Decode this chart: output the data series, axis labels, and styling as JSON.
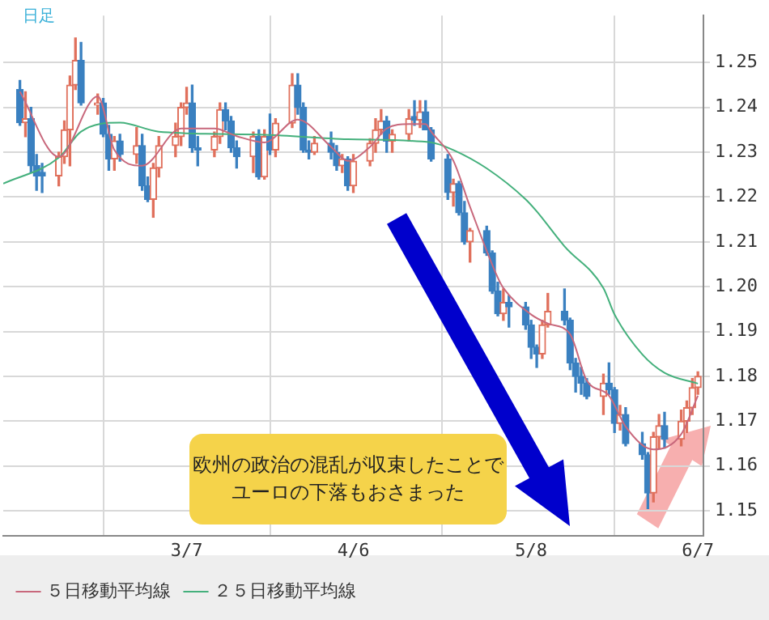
{
  "chart_data": {
    "type": "candlestick",
    "annotations": [
      "日足",
      "欧州の政治の混乱が収束したことでユーロの下落もおさまった"
    ],
    "x": [
      "--02-05",
      "--02-06",
      "--02-07",
      "--02-08",
      "--02-09",
      "--02-12",
      "--02-13",
      "--02-14",
      "--02-15",
      "--02-16",
      "--02-19",
      "--02-20",
      "--02-21",
      "--02-22",
      "--02-23",
      "--02-26",
      "--02-27",
      "--02-28",
      "--03-01",
      "--03-02",
      "--03-05",
      "--03-06",
      "--03-07",
      "--03-08",
      "--03-09",
      "--03-12",
      "--03-13",
      "--03-14",
      "--03-15",
      "--03-16",
      "--03-19",
      "--03-20",
      "--03-21",
      "--03-22",
      "--03-23",
      "--03-26",
      "--03-27",
      "--03-28",
      "--03-29",
      "--03-30",
      "--04-02",
      "--04-03",
      "--04-04",
      "--04-05",
      "--04-06",
      "--04-09",
      "--04-10",
      "--04-11",
      "--04-12",
      "--04-13",
      "--04-16",
      "--04-17",
      "--04-18",
      "--04-19",
      "--04-20",
      "--04-23",
      "--04-24",
      "--04-25",
      "--04-26",
      "--04-27",
      "--04-30",
      "--05-01",
      "--05-02",
      "--05-03",
      "--05-04",
      "--05-07",
      "--05-08",
      "--05-09",
      "--05-10",
      "--05-11",
      "--05-14",
      "--05-15",
      "--05-16",
      "--05-17",
      "--05-18",
      "--05-21",
      "--05-22",
      "--05-23",
      "--05-24",
      "--05-25",
      "--05-28",
      "--05-29",
      "--05-30",
      "--05-31",
      "--06-01",
      "--06-04",
      "--06-05",
      "--06-06",
      "--06-07"
    ],
    "ohlc": [
      [
        1.244,
        1.246,
        1.236,
        1.2366
      ],
      [
        1.2366,
        1.2435,
        1.2335,
        1.2375
      ],
      [
        1.2375,
        1.24,
        1.2255,
        1.227
      ],
      [
        1.227,
        1.2295,
        1.2215,
        1.2247
      ],
      [
        1.2255,
        1.2275,
        1.221,
        1.2247
      ],
      [
        1.2247,
        1.23,
        1.2225,
        1.229
      ],
      [
        1.229,
        1.237,
        1.2275,
        1.235
      ],
      [
        1.235,
        1.247,
        1.227,
        1.245
      ],
      [
        1.245,
        1.2555,
        1.244,
        1.2505
      ],
      [
        1.2505,
        1.2545,
        1.2405,
        1.241
      ],
      [
        1.2405,
        1.243,
        1.2385,
        1.241
      ],
      [
        1.241,
        1.242,
        1.2335,
        1.234
      ],
      [
        1.234,
        1.236,
        1.226,
        1.2285
      ],
      [
        1.2285,
        1.2335,
        1.226,
        1.2325
      ],
      [
        1.2325,
        1.234,
        1.228,
        1.2295
      ],
      [
        1.2295,
        1.2355,
        1.2275,
        1.2315
      ],
      [
        1.2315,
        1.234,
        1.2215,
        1.2225
      ],
      [
        1.2225,
        1.2245,
        1.219,
        1.2195
      ],
      [
        1.2195,
        1.2275,
        1.2155,
        1.2265
      ],
      [
        1.2265,
        1.2335,
        1.2245,
        1.2315
      ],
      [
        1.2315,
        1.2365,
        1.229,
        1.2335
      ],
      [
        1.2335,
        1.241,
        1.2315,
        1.24
      ],
      [
        1.24,
        1.2445,
        1.2385,
        1.241
      ],
      [
        1.241,
        1.245,
        1.23,
        1.231
      ],
      [
        1.231,
        1.2335,
        1.227,
        1.2305
      ],
      [
        1.2305,
        1.2345,
        1.229,
        1.2335
      ],
      [
        1.2335,
        1.241,
        1.232,
        1.2395
      ],
      [
        1.2395,
        1.241,
        1.235,
        1.237
      ],
      [
        1.237,
        1.238,
        1.23,
        1.231
      ],
      [
        1.231,
        1.2325,
        1.2265,
        1.229
      ],
      [
        1.229,
        1.2345,
        1.2255,
        1.2335
      ],
      [
        1.2335,
        1.235,
        1.224,
        1.2245
      ],
      [
        1.2245,
        1.235,
        1.224,
        1.2335
      ],
      [
        1.2335,
        1.2385,
        1.2295,
        1.2305
      ],
      [
        1.2305,
        1.2375,
        1.229,
        1.2365
      ],
      [
        1.2365,
        1.2475,
        1.2355,
        1.245
      ],
      [
        1.245,
        1.2475,
        1.2385,
        1.24
      ],
      [
        1.24,
        1.241,
        1.23,
        1.2305
      ],
      [
        1.2305,
        1.2325,
        1.2285,
        1.23
      ],
      [
        1.23,
        1.2335,
        1.2295,
        1.232
      ],
      [
        1.232,
        1.2345,
        1.2285,
        1.23
      ],
      [
        1.23,
        1.2315,
        1.226,
        1.227
      ],
      [
        1.227,
        1.2295,
        1.2255,
        1.2285
      ],
      [
        1.2285,
        1.229,
        1.2215,
        1.2225
      ],
      [
        1.2225,
        1.2295,
        1.221,
        1.228
      ],
      [
        1.228,
        1.233,
        1.227,
        1.232
      ],
      [
        1.232,
        1.2375,
        1.23,
        1.235
      ],
      [
        1.235,
        1.2395,
        1.234,
        1.237
      ],
      [
        1.237,
        1.238,
        1.23,
        1.2325
      ],
      [
        1.2325,
        1.235,
        1.23,
        1.234
      ],
      [
        1.234,
        1.2395,
        1.2325,
        1.2375
      ],
      [
        1.238,
        1.2415,
        1.236,
        1.2372
      ],
      [
        1.2372,
        1.2415,
        1.2355,
        1.239
      ],
      [
        1.239,
        1.2415,
        1.235,
        1.235
      ],
      [
        1.235,
        1.2355,
        1.228,
        1.2285
      ],
      [
        1.2285,
        1.2295,
        1.2195,
        1.221
      ],
      [
        1.221,
        1.224,
        1.218,
        1.223
      ],
      [
        1.223,
        1.2235,
        1.216,
        1.2165
      ],
      [
        1.2165,
        1.219,
        1.2095,
        1.21
      ],
      [
        1.21,
        1.213,
        1.2055,
        1.2125
      ],
      [
        1.2125,
        1.2135,
        1.207,
        1.2075
      ],
      [
        1.2075,
        1.208,
        1.1985,
        1.199
      ],
      [
        1.199,
        1.201,
        1.1935,
        1.194
      ],
      [
        1.194,
        1.1995,
        1.1925,
        1.1965
      ],
      [
        1.1965,
        1.198,
        1.191,
        1.1955
      ],
      [
        1.1955,
        1.1965,
        1.1905,
        1.1915
      ],
      [
        1.1915,
        1.1925,
        1.184,
        1.1865
      ],
      [
        1.1865,
        1.187,
        1.182,
        1.185
      ],
      [
        1.185,
        1.1925,
        1.184,
        1.1915
      ],
      [
        1.1915,
        1.1985,
        1.191,
        1.1945
      ],
      [
        1.1945,
        1.1995,
        1.1915,
        1.1925
      ],
      [
        1.1925,
        1.193,
        1.1815,
        1.183
      ],
      [
        1.183,
        1.184,
        1.1765,
        1.18
      ],
      [
        1.18,
        1.182,
        1.176,
        1.1785
      ],
      [
        1.1785,
        1.1795,
        1.175,
        1.1755
      ],
      [
        1.1755,
        1.1805,
        1.1715,
        1.1785
      ],
      [
        1.1785,
        1.183,
        1.176,
        1.177
      ],
      [
        1.177,
        1.1775,
        1.1675,
        1.1695
      ],
      [
        1.1695,
        1.1735,
        1.168,
        1.1715
      ],
      [
        1.1715,
        1.173,
        1.1645,
        1.165
      ],
      [
        1.165,
        1.1675,
        1.1615,
        1.1625
      ],
      [
        1.1625,
        1.163,
        1.1505,
        1.154
      ],
      [
        1.154,
        1.1675,
        1.152,
        1.1665
      ],
      [
        1.1665,
        1.1715,
        1.164,
        1.169
      ],
      [
        1.169,
        1.172,
        1.164,
        1.166
      ],
      [
        1.166,
        1.1725,
        1.1645,
        1.17
      ],
      [
        1.17,
        1.1745,
        1.1675,
        1.173
      ],
      [
        1.173,
        1.1795,
        1.1715,
        1.1775
      ],
      [
        1.1775,
        1.181,
        1.176,
        1.18
      ]
    ],
    "series": [
      {
        "name": "５日移動平均線",
        "type": "line",
        "color": "#c8687c",
        "x": [
          "--02-05",
          "--02-12",
          "--02-19",
          "--02-22",
          "--02-27",
          "--03-06",
          "--03-12",
          "--03-16",
          "--03-21",
          "--03-27",
          "--04-02",
          "--04-05",
          "--04-09",
          "--04-12",
          "--04-16",
          "--04-19",
          "--04-20",
          "--04-24",
          "--04-27",
          "--05-02",
          "--05-03",
          "--05-08",
          "--05-11",
          "--05-15",
          "--05-18",
          "--05-22",
          "--05-25",
          "--05-30",
          "--06-04",
          "--06-07"
        ],
        "values": [
          1.2435,
          1.229,
          1.2425,
          1.2305,
          1.227,
          1.2353,
          1.2353,
          1.2336,
          1.2322,
          1.2373,
          1.2312,
          1.2281,
          1.2312,
          1.2353,
          1.2363,
          1.2363,
          1.2346,
          1.2281,
          1.2178,
          1.202,
          1.1997,
          1.1938,
          1.1918,
          1.1894,
          1.1791,
          1.1757,
          1.1688,
          1.1637,
          1.1671,
          1.1757
        ]
      },
      {
        "name": "２５日移動平均線",
        "type": "line",
        "color": "#44b07c",
        "x": [
          "--02-02",
          "--02-12",
          "--02-16",
          "--02-23",
          "--03-02",
          "--03-21",
          "--04-05",
          "--04-20",
          "--04-24",
          "--04-30",
          "--05-07",
          "--05-09",
          "--05-14",
          "--05-21",
          "--05-23",
          "--05-28",
          "--06-01",
          "--06-07"
        ],
        "values": [
          1.223,
          1.2288,
          1.2346,
          1.2366,
          1.2346,
          1.2339,
          1.2329,
          1.2322,
          1.2305,
          1.2264,
          1.2195,
          1.2168,
          1.209,
          1.1997,
          1.1938,
          1.1849,
          1.1808,
          1.1784
        ]
      }
    ],
    "xlim": [
      "--02-02",
      "--06-08"
    ],
    "xticks": [
      {
        "value": "--03-07",
        "label": "3/7"
      },
      {
        "value": "--04-06",
        "label": "4/6"
      },
      {
        "value": "--05-08",
        "label": "5/8"
      },
      {
        "value": "--06-07",
        "label": "6/7"
      }
    ],
    "ylim": [
      1.1445,
      1.2605
    ],
    "yticks": [
      1.15,
      1.16,
      1.17,
      1.18,
      1.19,
      {
        "value": 1.2,
        "label": "1.20"
      },
      1.21,
      1.22,
      1.23,
      1.24,
      1.25
    ],
    "grid": true,
    "legend": "bottom",
    "marker": "none",
    "line_style": "solid"
  }
}
